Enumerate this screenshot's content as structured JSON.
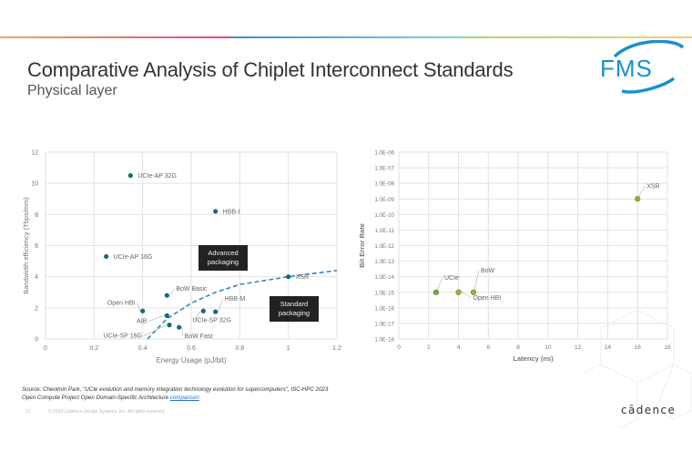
{
  "slide": {
    "title": "Comparative Analysis of Chiplet Interconnect Standards",
    "subtitle": "Physical layer",
    "logo": "FMS",
    "brand": "cādence",
    "page_number": "12",
    "copyright": "© 2024 Cadence Design Systems, Inc. All rights reserved.",
    "source_line1": "Source: Cheolmin Park, \"UCIe evolution and memory integration technology evolution for supercomputers\", ISC-HPC 2023",
    "source_line2": "Open Compute Project Open Domain-Specific Architecture ",
    "source_link": "comparison"
  },
  "colors": {
    "teal_point": "#0f6e78",
    "green_point": "#8db54a",
    "trend_line": "#3b82c4",
    "fms_blue": "#1a8fd0",
    "grid": "#e2e2e2"
  },
  "chart_data": [
    {
      "type": "scatter",
      "title": "",
      "xlabel": "Energy Usage (pJ/bit)",
      "ylabel": "Bandwidth efficiency (Tbps/mm)",
      "xlim": [
        0,
        1.2
      ],
      "ylim": [
        0,
        12
      ],
      "xticks": [
        "0",
        "0.2",
        "0.4",
        "0.6",
        "0.8",
        "1",
        "1.2"
      ],
      "yticks": [
        "0",
        "2",
        "4",
        "6",
        "8",
        "10",
        "12"
      ],
      "grid": true,
      "points": [
        {
          "label": "UCIe-AP 32G",
          "x": 0.35,
          "y": 10.5
        },
        {
          "label": "HBB-I",
          "x": 0.7,
          "y": 8.2
        },
        {
          "label": "UCIe-AP 16G",
          "x": 0.25,
          "y": 5.3
        },
        {
          "label": "XSR",
          "x": 1.0,
          "y": 4.0
        },
        {
          "label": "BoW Basic",
          "x": 0.5,
          "y": 2.8
        },
        {
          "label": "Open HBI",
          "x": 0.4,
          "y": 1.8
        },
        {
          "label": "AIB",
          "x": 0.5,
          "y": 1.5
        },
        {
          "label": "UCIe-SP 16G",
          "x": 0.51,
          "y": 0.9
        },
        {
          "label": "BoW Fast",
          "x": 0.55,
          "y": 0.75
        },
        {
          "label": "UCIe-SP 32G",
          "x": 0.65,
          "y": 1.8
        },
        {
          "label": "HBB-M",
          "x": 0.7,
          "y": 1.75
        }
      ],
      "trendline": {
        "style": "dashed",
        "points": [
          [
            0.42,
            0
          ],
          [
            0.5,
            1.3
          ],
          [
            0.6,
            2.3
          ],
          [
            0.7,
            3.0
          ],
          [
            0.8,
            3.5
          ],
          [
            1.0,
            4.0
          ],
          [
            1.2,
            4.4
          ]
        ]
      },
      "annotations": [
        {
          "text": "Advanced packaging",
          "x": 0.7,
          "y": 5.0
        },
        {
          "text": "Standard packaging",
          "x": 1.03,
          "y": 1.9
        }
      ]
    },
    {
      "type": "scatter",
      "title": "",
      "xlabel": "Latency (ns)",
      "ylabel": "Bit Error Rate",
      "xlim": [
        0,
        18
      ],
      "ylim": [
        "1.0E-18",
        "1.0E-06"
      ],
      "yscale": "log",
      "xticks": [
        "0",
        "2",
        "4",
        "6",
        "8",
        "10",
        "12",
        "14",
        "16",
        "18"
      ],
      "yticks": [
        "1.0E-06",
        "1.0E-07",
        "1.0E-08",
        "1.0E-09",
        "1.0E-10",
        "1.0E-11",
        "1.0E-12",
        "1.0E-13",
        "1.0E-14",
        "1.0E-15",
        "1.0E-16",
        "1.0E-17",
        "1.0E-18"
      ],
      "grid": true,
      "points": [
        {
          "label": "UCIe",
          "x": 2.5,
          "y": 1e-15
        },
        {
          "label": "Open HBI",
          "x": 4,
          "y": 1e-15
        },
        {
          "label": "BoW",
          "x": 5,
          "y": 1e-15
        },
        {
          "label": "XSR",
          "x": 16,
          "y": 1e-09
        }
      ]
    }
  ]
}
